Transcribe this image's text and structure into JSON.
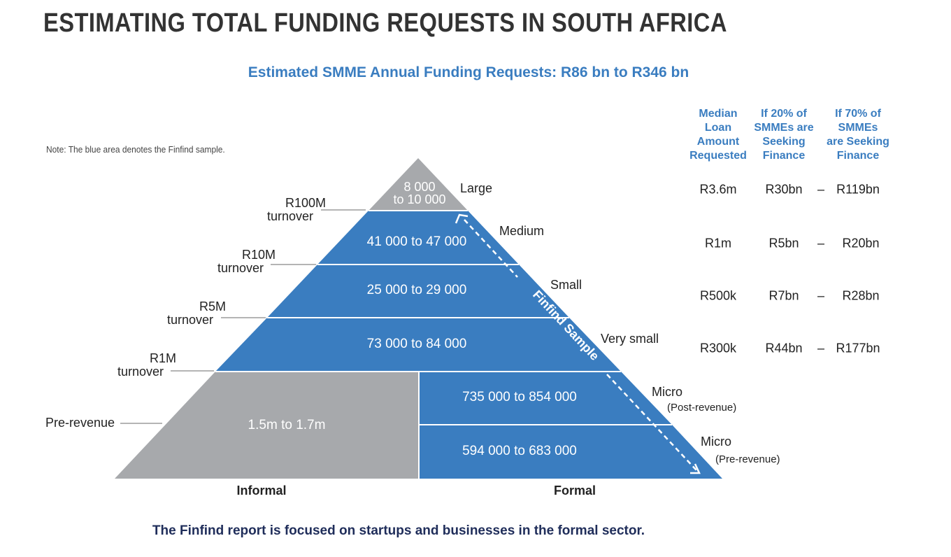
{
  "title": "ESTIMATING TOTAL FUNDING REQUESTS IN SOUTH AFRICA",
  "subtitle": "Estimated SMME Annual Funding Requests: R86 bn to R346 bn",
  "note": "Note: The blue area denotes the Finfind sample.",
  "colors": {
    "blue": "#3a7dc0",
    "gray": "#a7a9ac",
    "title": "#333333",
    "footer": "#1f2d5a"
  },
  "pyramid": {
    "tiers": [
      {
        "id": "large",
        "label": "Large",
        "sublabel": "",
        "range_line1": "8 000",
        "range_line2": "to 10 000"
      },
      {
        "id": "medium",
        "label": "Medium",
        "sublabel": "",
        "range": "41 000 to 47 000"
      },
      {
        "id": "small",
        "label": "Small",
        "sublabel": "",
        "range": "25 000 to 29 000"
      },
      {
        "id": "very-small",
        "label": "Very small",
        "sublabel": "",
        "range": "73 000 to 84 000"
      },
      {
        "id": "micro-post",
        "label": "Micro",
        "sublabel": "(Post-revenue)",
        "range": "735 000 to 854 000"
      },
      {
        "id": "micro-pre",
        "label": "Micro",
        "sublabel": "(Pre-revenue)",
        "range": "594 000 to 683 000"
      }
    ],
    "informal_range": "1.5m to 1.7m",
    "thresholds": [
      {
        "line1": "R100M",
        "line2": "turnover"
      },
      {
        "line1": "R10M",
        "line2": "turnover"
      },
      {
        "line1": "R5M",
        "line2": "turnover"
      },
      {
        "line1": "R1M",
        "line2": "turnover"
      },
      {
        "line1": "Pre-revenue",
        "line2": ""
      }
    ],
    "sample_arrow_label": "Finfind Sample",
    "x_labels": {
      "informal": "Informal",
      "formal": "Formal"
    }
  },
  "table": {
    "headers": [
      "Median\nLoan\nAmount\nRequested",
      "If 20% of\nSMMEs are\nSeeking\nFinance",
      "If 70% of\nSMMEs\nare Seeking\nFinance"
    ],
    "rows": [
      {
        "median": "R3.6m",
        "low": "R30bn",
        "dash": "–",
        "high": "R119bn"
      },
      {
        "median": "R1m",
        "low": "R5bn",
        "dash": "–",
        "high": "R20bn"
      },
      {
        "median": "R500k",
        "low": "R7bn",
        "dash": "–",
        "high": "R28bn"
      },
      {
        "median": "R300k",
        "low": "R44bn",
        "dash": "–",
        "high": "R177bn"
      }
    ]
  },
  "footer": "The Finfind report is focused on startups and businesses in the formal sector."
}
